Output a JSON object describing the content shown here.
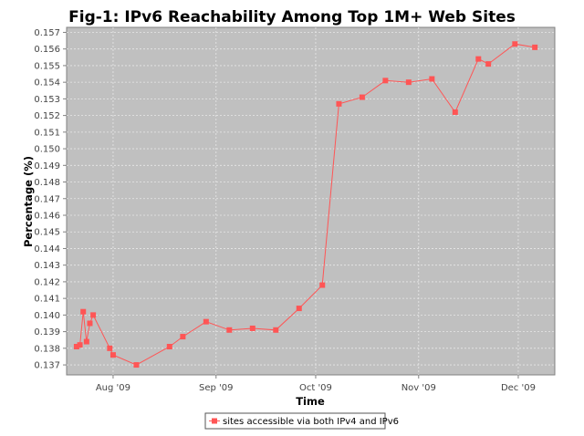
{
  "chart_data": {
    "type": "line",
    "title": "Fig-1: IPv6 Reachability Among Top 1M+ Web Sites",
    "xlabel": "Time",
    "ylabel": "Percentage (%)",
    "xlim": [
      "2009-07-18",
      "2009-12-12"
    ],
    "ylim": [
      0.1364,
      0.1573
    ],
    "yticks": [
      "0.137",
      "0.138",
      "0.139",
      "0.140",
      "0.141",
      "0.142",
      "0.143",
      "0.144",
      "0.145",
      "0.146",
      "0.147",
      "0.148",
      "0.149",
      "0.150",
      "0.151",
      "0.152",
      "0.153",
      "0.154",
      "0.155",
      "0.156",
      "0.157"
    ],
    "xticks": [
      {
        "date": "2009-08-01",
        "label": "Aug '09"
      },
      {
        "date": "2009-09-01",
        "label": "Sep '09"
      },
      {
        "date": "2009-10-01",
        "label": "Oct '09"
      },
      {
        "date": "2009-11-01",
        "label": "Nov '09"
      },
      {
        "date": "2009-12-01",
        "label": "Dec '09"
      }
    ],
    "grid": true,
    "legend_position": "bottom",
    "series": [
      {
        "name": "sites accessible via both IPv4 and IPv6",
        "color": "#ff5555",
        "marker": "square",
        "points": [
          {
            "x": "2009-07-21",
            "y": 0.1381
          },
          {
            "x": "2009-07-22",
            "y": 0.1382
          },
          {
            "x": "2009-07-23",
            "y": 0.1402
          },
          {
            "x": "2009-07-24",
            "y": 0.1384
          },
          {
            "x": "2009-07-25",
            "y": 0.1395
          },
          {
            "x": "2009-07-26",
            "y": 0.14
          },
          {
            "x": "2009-07-31",
            "y": 0.138
          },
          {
            "x": "2009-08-01",
            "y": 0.1376
          },
          {
            "x": "2009-08-08",
            "y": 0.137
          },
          {
            "x": "2009-08-18",
            "y": 0.1381
          },
          {
            "x": "2009-08-22",
            "y": 0.1387
          },
          {
            "x": "2009-08-29",
            "y": 0.1396
          },
          {
            "x": "2009-09-05",
            "y": 0.1391
          },
          {
            "x": "2009-09-12",
            "y": 0.1392
          },
          {
            "x": "2009-09-19",
            "y": 0.1391
          },
          {
            "x": "2009-09-26",
            "y": 0.1404
          },
          {
            "x": "2009-10-03",
            "y": 0.1418
          },
          {
            "x": "2009-10-08",
            "y": 0.1527
          },
          {
            "x": "2009-10-15",
            "y": 0.1531
          },
          {
            "x": "2009-10-22",
            "y": 0.1541
          },
          {
            "x": "2009-10-29",
            "y": 0.154
          },
          {
            "x": "2009-11-05",
            "y": 0.1542
          },
          {
            "x": "2009-11-12",
            "y": 0.1522
          },
          {
            "x": "2009-11-19",
            "y": 0.1554
          },
          {
            "x": "2009-11-22",
            "y": 0.1551
          },
          {
            "x": "2009-11-30",
            "y": 0.1563
          },
          {
            "x": "2009-12-06",
            "y": 0.1561
          }
        ]
      }
    ]
  },
  "colors": {
    "plot_background": "#c0c0c0",
    "grid": "#e8e8e8",
    "series": "#ff5555"
  }
}
